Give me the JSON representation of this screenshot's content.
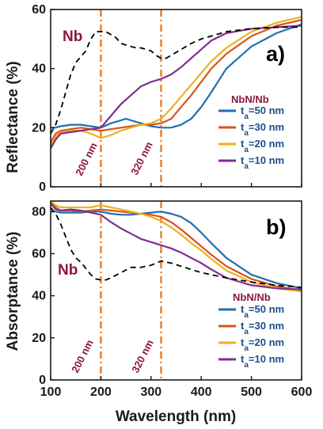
{
  "chart_data": [
    {
      "panel": "a)",
      "type": "line",
      "ylabel": "Reflectance (%)",
      "xlim": [
        100,
        600
      ],
      "ylim": [
        0,
        60
      ],
      "xticks": [
        100,
        200,
        300,
        400,
        500,
        600
      ],
      "yticks": [
        0,
        20,
        40,
        60
      ],
      "reference_lines": [
        {
          "x": 200,
          "label": "200 nm",
          "color": "#e8873a"
        },
        {
          "x": 320,
          "label": "320 nm",
          "color": "#e8873a"
        }
      ],
      "legend_title": "NbN/Nb",
      "legend_position": "right",
      "series": [
        {
          "name": "Nb",
          "color": "#000000",
          "dashed": true,
          "label_in_plot": true,
          "x": [
            100,
            110,
            120,
            130,
            140,
            150,
            160,
            170,
            180,
            190,
            200,
            210,
            220,
            230,
            240,
            250,
            260,
            270,
            280,
            290,
            300,
            310,
            320,
            330,
            340,
            360,
            380,
            400,
            450,
            500,
            550,
            600
          ],
          "y": [
            18,
            21,
            26,
            32,
            38,
            42,
            44,
            46,
            50,
            52.5,
            52.5,
            52.5,
            51.5,
            50.5,
            48.5,
            48,
            47.5,
            47,
            47,
            46.5,
            46,
            44.5,
            43.5,
            43.5,
            44.5,
            46.5,
            48.5,
            50,
            52.5,
            53.5,
            54,
            54
          ]
        },
        {
          "name": "t_a=50 nm",
          "color": "#1f6fb0",
          "x": [
            100,
            110,
            120,
            140,
            160,
            180,
            200,
            220,
            240,
            250,
            260,
            280,
            300,
            320,
            340,
            360,
            380,
            400,
            420,
            450,
            500,
            550,
            600
          ],
          "y": [
            20,
            20,
            20.5,
            21,
            21,
            20.5,
            20,
            21.5,
            22.5,
            23,
            22.5,
            21.5,
            20.5,
            20,
            20,
            21,
            23,
            27,
            32,
            40,
            47.5,
            52,
            55
          ]
        },
        {
          "name": "t_a=30 nm",
          "color": "#d95319",
          "x": [
            100,
            110,
            120,
            140,
            160,
            180,
            200,
            220,
            240,
            260,
            280,
            300,
            320,
            340,
            360,
            380,
            400,
            420,
            450,
            500,
            550,
            600
          ],
          "y": [
            15,
            18,
            19,
            19.5,
            20,
            19.5,
            19,
            19.5,
            20,
            20.5,
            21,
            21,
            21.5,
            23,
            27,
            31,
            35.5,
            40,
            45,
            51,
            54.5,
            56.5
          ]
        },
        {
          "name": "t_a=20 nm",
          "color": "#edb120",
          "x": [
            100,
            110,
            120,
            140,
            160,
            180,
            200,
            220,
            240,
            260,
            280,
            300,
            320,
            340,
            360,
            380,
            400,
            420,
            450,
            500,
            550,
            600
          ],
          "y": [
            14,
            17,
            18.5,
            19,
            19,
            18,
            16.5,
            17.5,
            19,
            20,
            21,
            21.5,
            23,
            26.5,
            30.5,
            34.5,
            38.5,
            42.5,
            47,
            52.5,
            55.5,
            57.5
          ]
        },
        {
          "name": "t_a=10 nm",
          "color": "#7e2f8e",
          "x": [
            100,
            110,
            120,
            140,
            160,
            180,
            200,
            220,
            240,
            260,
            280,
            300,
            320,
            340,
            360,
            380,
            400,
            420,
            450,
            500,
            550,
            600
          ],
          "y": [
            13,
            16,
            18,
            18.5,
            19,
            19.5,
            20,
            24,
            28,
            31,
            34,
            35.5,
            36.5,
            38,
            40.5,
            43.5,
            46.5,
            49.5,
            52,
            53.5,
            54,
            54.5
          ]
        }
      ]
    },
    {
      "panel": "b)",
      "type": "line",
      "ylabel": "Absorptance (%)",
      "xlabel": "Wavelength (nm)",
      "xlim": [
        100,
        600
      ],
      "ylim": [
        0,
        85
      ],
      "xticks": [
        100,
        200,
        300,
        400,
        500,
        600
      ],
      "yticks": [
        0,
        20,
        40,
        60,
        80
      ],
      "reference_lines": [
        {
          "x": 200,
          "label": "200 nm",
          "color": "#e8873a"
        },
        {
          "x": 320,
          "label": "320 nm",
          "color": "#e8873a"
        }
      ],
      "legend_title": "NbN/Nb",
      "legend_position": "bottom-right",
      "series": [
        {
          "name": "Nb",
          "color": "#000000",
          "dashed": true,
          "label_in_plot": true,
          "x": [
            100,
            110,
            120,
            130,
            140,
            150,
            160,
            170,
            180,
            190,
            200,
            210,
            220,
            240,
            260,
            280,
            300,
            320,
            340,
            360,
            380,
            400,
            450,
            500,
            550,
            600
          ],
          "y": [
            82,
            79,
            74,
            68,
            62,
            58,
            56,
            53,
            50,
            48,
            47.5,
            47.5,
            48.5,
            51,
            53.5,
            53.5,
            54.5,
            56.5,
            55.5,
            54,
            52.5,
            51,
            48.5,
            46.5,
            45,
            44
          ]
        },
        {
          "name": "t_a=50 nm",
          "color": "#1f6fb0",
          "x": [
            100,
            110,
            120,
            140,
            160,
            180,
            200,
            220,
            240,
            260,
            280,
            300,
            320,
            340,
            360,
            380,
            400,
            420,
            450,
            500,
            550,
            600
          ],
          "y": [
            80,
            80,
            79.5,
            79.5,
            79.5,
            80,
            80,
            79,
            78.5,
            78.5,
            79,
            79.5,
            80,
            79,
            77.5,
            74.5,
            70,
            65,
            58,
            50,
            46,
            43.5
          ]
        },
        {
          "name": "t_a=30 nm",
          "color": "#d95319",
          "x": [
            100,
            110,
            120,
            140,
            160,
            180,
            200,
            220,
            240,
            260,
            280,
            300,
            320,
            340,
            360,
            380,
            400,
            420,
            450,
            500,
            550,
            600
          ],
          "y": [
            85,
            82,
            80.5,
            80.5,
            80,
            80.5,
            81,
            80.5,
            80,
            79.5,
            79,
            78.5,
            77.5,
            75,
            71.5,
            67.5,
            63.5,
            59.5,
            54,
            48,
            44.5,
            42.5
          ]
        },
        {
          "name": "t_a=20 nm",
          "color": "#edb120",
          "x": [
            100,
            110,
            120,
            140,
            160,
            180,
            200,
            220,
            240,
            260,
            280,
            300,
            320,
            340,
            360,
            380,
            400,
            420,
            450,
            500,
            550,
            600
          ],
          "y": [
            85,
            83,
            82,
            82,
            82,
            82,
            83,
            82,
            81,
            80,
            79,
            77.5,
            75.5,
            72.5,
            69,
            65,
            61.5,
            57.5,
            52,
            46.5,
            43.5,
            42
          ]
        },
        {
          "name": "t_a=10 nm",
          "color": "#7e2f8e",
          "x": [
            100,
            110,
            120,
            140,
            160,
            180,
            200,
            220,
            240,
            260,
            280,
            300,
            320,
            340,
            360,
            380,
            400,
            420,
            450,
            500,
            550,
            600
          ],
          "y": [
            84,
            81,
            80.5,
            81,
            80.5,
            79.5,
            78.5,
            75,
            72,
            69.5,
            67,
            65.5,
            64,
            62.5,
            60.5,
            58,
            55.5,
            52.5,
            48.5,
            45,
            43.5,
            43
          ]
        }
      ]
    }
  ]
}
